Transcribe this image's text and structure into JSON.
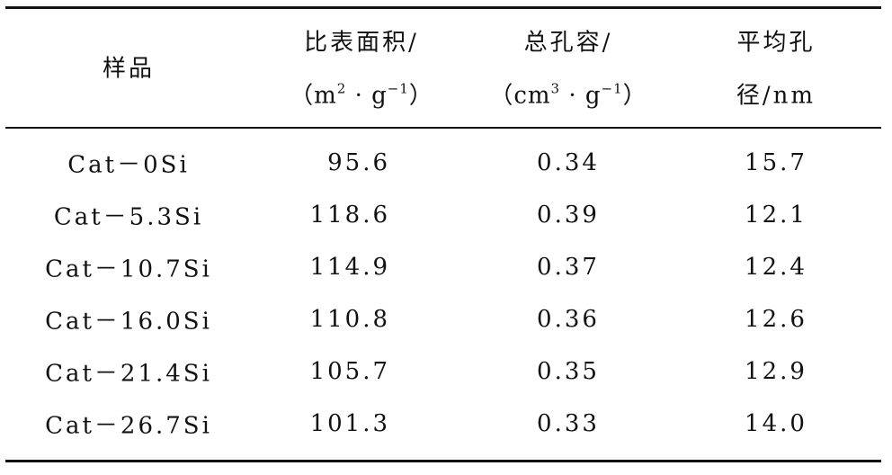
{
  "table": {
    "header": {
      "sample": "样品",
      "surface_area": {
        "line1": "比表面积/",
        "line2": [
          "（m",
          "2",
          " · g",
          "−1",
          "）"
        ]
      },
      "pore_volume": {
        "line1": "总孔容/",
        "line2": [
          "（cm",
          "3",
          " · g",
          "−1",
          "）"
        ]
      },
      "pore_diameter": {
        "line1": "平均孔",
        "line2": "径/nm"
      }
    },
    "rows": [
      [
        "Cat－0Si",
        "95.6",
        "0.34",
        "15.7"
      ],
      [
        "Cat－5.3Si",
        "118.6",
        "0.39",
        "12.1"
      ],
      [
        "Cat－10.7Si",
        "114.9",
        "0.37",
        "12.4"
      ],
      [
        "Cat－16.0Si",
        "110.8",
        "0.36",
        "12.6"
      ],
      [
        "Cat－21.4Si",
        "105.7",
        "0.35",
        "12.9"
      ],
      [
        "Cat－26.7Si",
        "101.3",
        "0.33",
        "14.0"
      ]
    ]
  }
}
